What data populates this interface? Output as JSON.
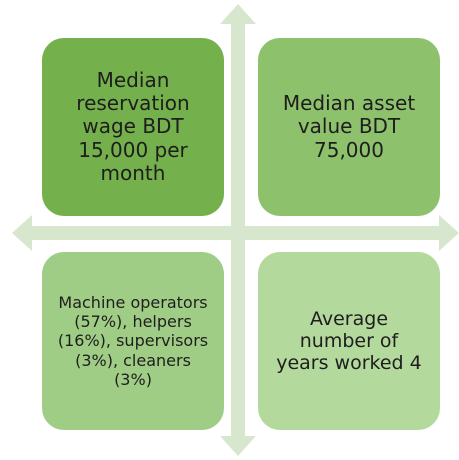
{
  "quadrants": [
    {
      "text": "Median reservation wage BDT 15,000 per month"
    },
    {
      "text": "Median asset value BDT 75,000"
    },
    {
      "text": "Machine operators (57%), helpers (16%), supervisors (3%), cleaners (3%)"
    },
    {
      "text": "Average number of years worked 4"
    }
  ]
}
